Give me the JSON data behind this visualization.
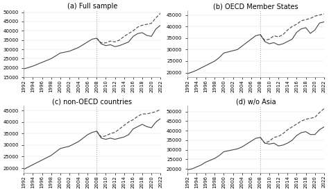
{
  "years": [
    1992,
    1993,
    1994,
    1995,
    1996,
    1997,
    1998,
    1999,
    2000,
    2001,
    2002,
    2003,
    2004,
    2005,
    2006,
    2007,
    2008,
    2009,
    2010,
    2011,
    2012,
    2013,
    2014,
    2015,
    2016,
    2017,
    2018,
    2019,
    2020,
    2021,
    2022
  ],
  "cutoff_year": 2008,
  "panel_a_title": "(a) Full sample",
  "panel_a_solid": [
    19500,
    20200,
    21000,
    22000,
    23000,
    24000,
    25000,
    26500,
    28000,
    28500,
    29000,
    30000,
    31000,
    32500,
    34000,
    35500,
    36000,
    33000,
    32000,
    32500,
    31500,
    32000,
    33000,
    34000,
    37000,
    38500,
    39000,
    37500,
    37000,
    41000,
    43000
  ],
  "panel_a_dashed": [
    null,
    null,
    null,
    null,
    null,
    null,
    null,
    null,
    null,
    null,
    null,
    null,
    null,
    null,
    null,
    null,
    36000,
    33500,
    33500,
    34500,
    34000,
    35000,
    37000,
    38500,
    40000,
    42000,
    43000,
    43500,
    44000,
    47000,
    49500
  ],
  "panel_a_ylim": [
    15000,
    51000
  ],
  "panel_a_yticks": [
    15000,
    20000,
    25000,
    30000,
    35000,
    40000,
    45000,
    50000
  ],
  "panel_b_title": "(b) OECD Member States",
  "panel_b_solid": [
    19500,
    20200,
    21000,
    22000,
    23000,
    24000,
    25000,
    26500,
    28500,
    29000,
    29500,
    30000,
    31500,
    33000,
    34500,
    36000,
    36500,
    33500,
    32500,
    33000,
    32000,
    32500,
    33500,
    34500,
    37500,
    39000,
    39500,
    37000,
    38500,
    41500,
    42000
  ],
  "panel_b_dashed": [
    null,
    null,
    null,
    null,
    null,
    null,
    null,
    null,
    null,
    null,
    null,
    null,
    null,
    null,
    null,
    null,
    36500,
    34000,
    34500,
    36000,
    35500,
    36500,
    38500,
    40000,
    41000,
    42500,
    43000,
    43500,
    44500,
    45000,
    45500
  ],
  "panel_b_ylim": [
    18000,
    47000
  ],
  "panel_b_yticks": [
    20000,
    25000,
    30000,
    35000,
    40000,
    45000
  ],
  "panel_c_title": "(c) non-OECD countries",
  "panel_c_solid": [
    19500,
    20500,
    21500,
    22500,
    23500,
    24500,
    25500,
    27000,
    28500,
    29000,
    29500,
    30500,
    31500,
    33000,
    34500,
    35500,
    36000,
    33000,
    32500,
    33000,
    32500,
    33000,
    33500,
    34500,
    37000,
    38000,
    39000,
    38000,
    37500,
    40000,
    41500
  ],
  "panel_c_dashed": [
    null,
    null,
    null,
    null,
    null,
    null,
    null,
    null,
    null,
    null,
    null,
    null,
    null,
    null,
    null,
    null,
    36000,
    33500,
    34000,
    35000,
    35500,
    37000,
    38500,
    40000,
    41000,
    42500,
    43500,
    43500,
    44000,
    44500,
    45500
  ],
  "panel_c_ylim": [
    18000,
    47000
  ],
  "panel_c_yticks": [
    20000,
    25000,
    30000,
    35000,
    40000,
    45000
  ],
  "panel_d_title": "(d) w/o Asia",
  "panel_d_solid": [
    19500,
    20000,
    21000,
    22000,
    23500,
    24500,
    25500,
    27000,
    29000,
    29500,
    30000,
    30500,
    31500,
    33000,
    34500,
    36000,
    36500,
    33500,
    33000,
    33500,
    32000,
    32500,
    33500,
    35000,
    37500,
    39000,
    39500,
    38000,
    38000,
    40500,
    42000
  ],
  "panel_d_dashed": [
    null,
    null,
    null,
    null,
    null,
    null,
    null,
    null,
    null,
    null,
    null,
    null,
    null,
    null,
    null,
    null,
    36500,
    33500,
    34500,
    36500,
    37000,
    38500,
    40500,
    42000,
    43500,
    45000,
    46000,
    46500,
    47000,
    49500,
    51500
  ],
  "panel_d_ylim": [
    18000,
    53000
  ],
  "panel_d_yticks": [
    20000,
    25000,
    30000,
    35000,
    40000,
    45000,
    50000
  ],
  "line_color": "#444444",
  "vline_color": "#aaaaaa",
  "background_color": "#ffffff",
  "tick_label_fontsize": 5.0,
  "title_fontsize": 7.0
}
